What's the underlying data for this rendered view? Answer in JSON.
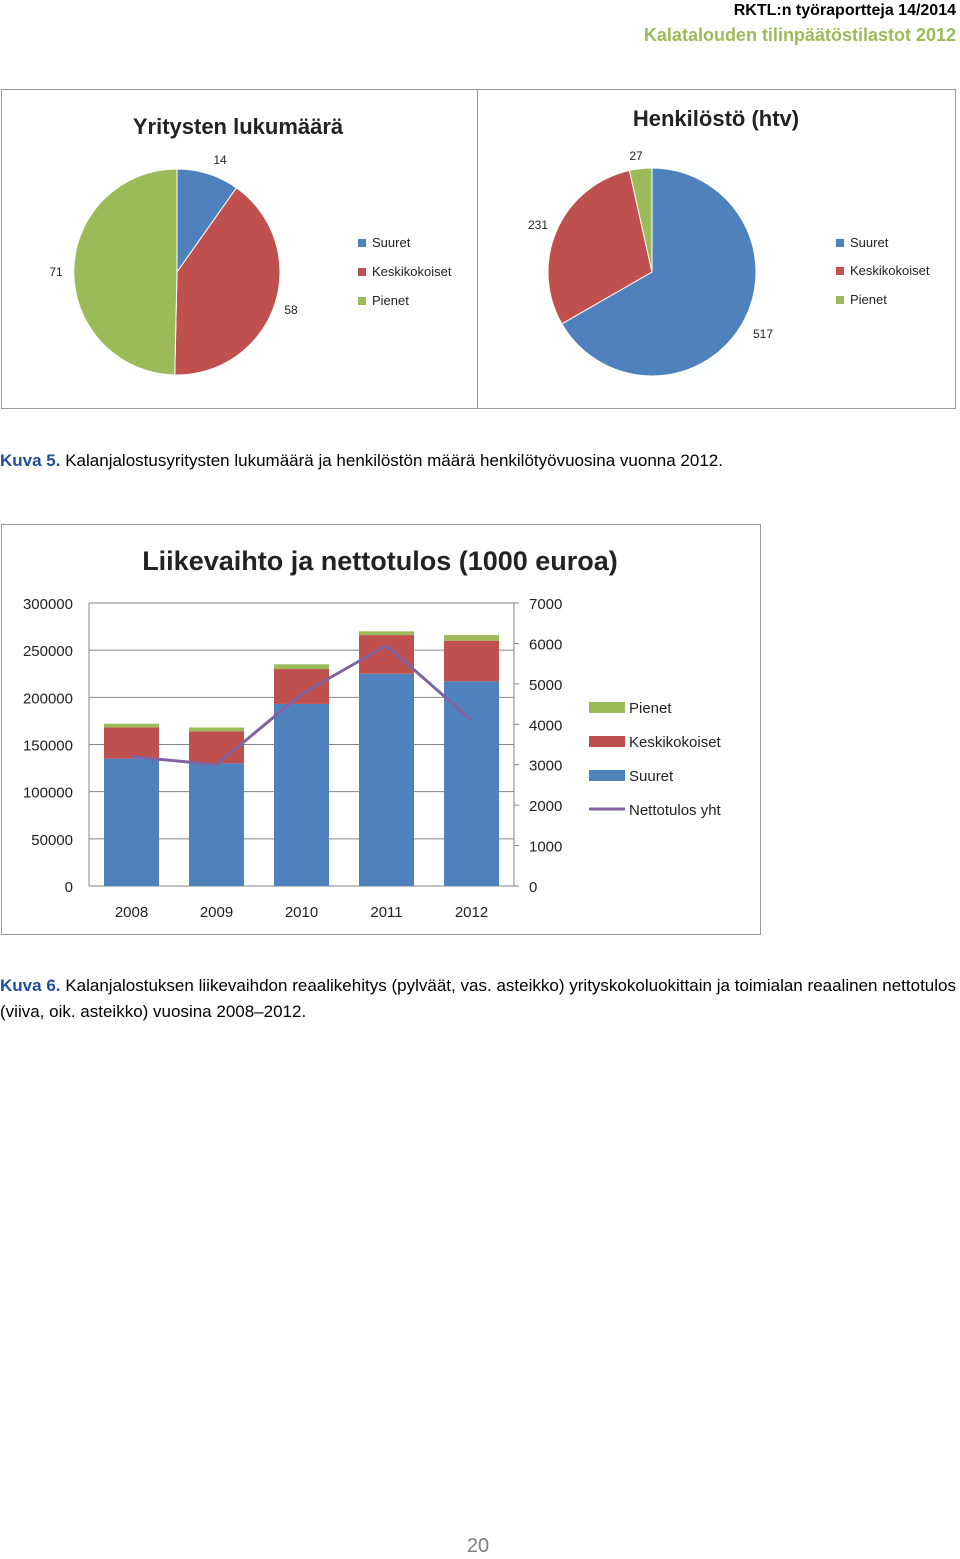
{
  "header": {
    "series_title": "RKTL:n työraportteja 14/2014",
    "report_title": "Kalatalouden tilinpäätöstilastot 2012"
  },
  "figure5": {
    "caption_label": "Kuva 5.",
    "caption_text": "Kalanjalostusyritysten lukumäärä ja henkilöstön määrä henkilötyövuosina vuonna 2012."
  },
  "figure6": {
    "caption_label": "Kuva 6.",
    "caption_text": "Kalanjalostuksen liikevaihdon reaalikehitys (pylväät, vas. asteikko) yrityskokoluokittain ja toimialan reaalinen nettotulos (viiva, oik. asteikko) vuosina 2008–2012."
  },
  "page_number": "20",
  "colors": {
    "suuret": "#4f81bd",
    "keskikokoiset": "#c0504d",
    "pienet": "#9bbb59",
    "nettotulos": "#8064a2",
    "header_green": "#9bbb59"
  },
  "chart_data": [
    {
      "type": "pie",
      "title": "Yritysten lukumäärä",
      "categories": [
        "Suuret",
        "Keskikokoiset",
        "Pienet"
      ],
      "values": [
        14,
        58,
        71
      ],
      "data_labels": [
        "14",
        "58",
        "71"
      ],
      "legend": [
        "Suuret",
        "Keskikokoiset",
        "Pienet"
      ],
      "legend_position": "right"
    },
    {
      "type": "pie",
      "title": "Henkilöstö (htv)",
      "categories": [
        "Suuret",
        "Keskikokoiset",
        "Pienet"
      ],
      "values": [
        517,
        231,
        27
      ],
      "data_labels": [
        "517",
        "231",
        "27"
      ],
      "legend": [
        "Suuret",
        "Keskikokoiset",
        "Pienet"
      ],
      "legend_position": "right"
    },
    {
      "type": "bar",
      "stacked": true,
      "title": "Liikevaihto ja nettotulos (1000 euroa)",
      "categories": [
        "2008",
        "2009",
        "2010",
        "2011",
        "2012"
      ],
      "series": [
        {
          "name": "Suuret",
          "values": [
            135000,
            130000,
            193000,
            225000,
            217000
          ]
        },
        {
          "name": "Keskikokoiset",
          "values": [
            33000,
            34000,
            37000,
            41000,
            43000
          ]
        },
        {
          "name": "Pienet",
          "values": [
            4000,
            4000,
            5000,
            4000,
            6000
          ]
        }
      ],
      "line_series": {
        "name": "Nettotulos yht",
        "axis": "right",
        "values": [
          3200,
          3000,
          4750,
          5950,
          4100
        ]
      },
      "ylim": [
        0,
        300000
      ],
      "yticks": [
        "0",
        "50000",
        "100000",
        "150000",
        "200000",
        "250000",
        "300000"
      ],
      "y2lim": [
        0,
        7000
      ],
      "y2ticks": [
        "0",
        "1000",
        "2000",
        "3000",
        "4000",
        "5000",
        "6000",
        "7000"
      ],
      "legend": [
        "Pienet",
        "Keskikokoiset",
        "Suuret",
        "Nettotulos yht"
      ],
      "legend_position": "right",
      "grid": true
    }
  ]
}
